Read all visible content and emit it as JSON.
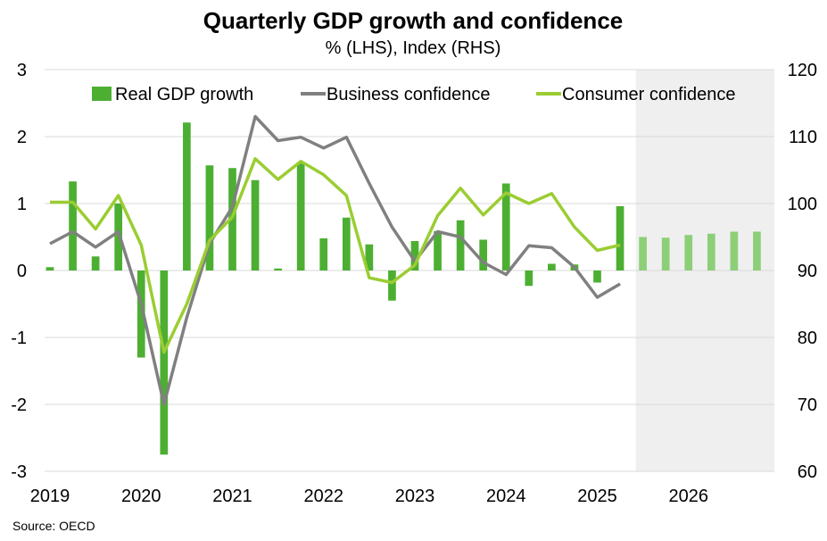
{
  "chart_data": {
    "type": "bar+line",
    "title": "Quarterly GDP growth and confidence",
    "subtitle": "% (LHS), Index (RHS)",
    "source": "Source: OECD",
    "x_labels": [
      "2019",
      "2020",
      "2021",
      "2022",
      "2023",
      "2024",
      "2025",
      "2026"
    ],
    "x_start": 2019,
    "x_end": 2027,
    "forecast_from": 2025.5,
    "y_left": {
      "min": -3,
      "max": 3,
      "ticks": [
        "3",
        "2",
        "1",
        "0",
        "-1",
        "-2",
        "-3"
      ]
    },
    "y_right": {
      "min": 60,
      "max": 120,
      "ticks": [
        "120",
        "110",
        "100",
        "90",
        "80",
        "70",
        "60"
      ]
    },
    "colors": {
      "gdp": "#4caf32",
      "gdp_forecast": "#8ccf78",
      "business": "#808080",
      "consumer": "#9acd32",
      "gridline": "#d9d9d9",
      "forecast_shade": "#efefef"
    },
    "legend": [
      {
        "label": "Real GDP growth",
        "kind": "bar",
        "color": "#4caf32"
      },
      {
        "label": "Business confidence",
        "kind": "line",
        "color": "#808080"
      },
      {
        "label": "Consumer confidence",
        "kind": "line",
        "color": "#9acd32"
      }
    ],
    "series": [
      {
        "name": "Real GDP growth",
        "axis": "left",
        "type": "bar",
        "points": [
          {
            "t": 2019.0,
            "v": 0.05
          },
          {
            "t": 2019.25,
            "v": 1.33
          },
          {
            "t": 2019.5,
            "v": 0.21
          },
          {
            "t": 2019.75,
            "v": 1.0
          },
          {
            "t": 2020.0,
            "v": -1.3
          },
          {
            "t": 2020.25,
            "v": -2.75
          },
          {
            "t": 2020.5,
            "v": 2.21
          },
          {
            "t": 2020.75,
            "v": 1.57
          },
          {
            "t": 2021.0,
            "v": 1.53
          },
          {
            "t": 2021.25,
            "v": 1.35
          },
          {
            "t": 2021.5,
            "v": 0.03
          },
          {
            "t": 2021.75,
            "v": 1.6
          },
          {
            "t": 2022.0,
            "v": 0.48
          },
          {
            "t": 2022.25,
            "v": 0.79
          },
          {
            "t": 2022.5,
            "v": 0.39
          },
          {
            "t": 2022.75,
            "v": -0.45
          },
          {
            "t": 2023.0,
            "v": 0.44
          },
          {
            "t": 2023.25,
            "v": 0.59
          },
          {
            "t": 2023.5,
            "v": 0.75
          },
          {
            "t": 2023.75,
            "v": 0.46
          },
          {
            "t": 2024.0,
            "v": 1.3
          },
          {
            "t": 2024.25,
            "v": -0.23
          },
          {
            "t": 2024.5,
            "v": 0.1
          },
          {
            "t": 2024.75,
            "v": 0.09
          },
          {
            "t": 2025.0,
            "v": -0.18
          },
          {
            "t": 2025.25,
            "v": 0.96
          }
        ]
      },
      {
        "name": "Real GDP growth (forecast)",
        "axis": "left",
        "type": "bar",
        "points": [
          {
            "t": 2025.5,
            "v": 0.5
          },
          {
            "t": 2025.75,
            "v": 0.49
          },
          {
            "t": 2026.0,
            "v": 0.53
          },
          {
            "t": 2026.25,
            "v": 0.55
          },
          {
            "t": 2026.5,
            "v": 0.58
          },
          {
            "t": 2026.75,
            "v": 0.58
          }
        ]
      },
      {
        "name": "Business confidence",
        "axis": "right",
        "type": "line",
        "points": [
          {
            "t": 2019.0,
            "v": 94
          },
          {
            "t": 2019.25,
            "v": 95.8
          },
          {
            "t": 2019.5,
            "v": 93.5
          },
          {
            "t": 2019.75,
            "v": 95.8
          },
          {
            "t": 2020.0,
            "v": 85
          },
          {
            "t": 2020.25,
            "v": 70
          },
          {
            "t": 2020.5,
            "v": 83
          },
          {
            "t": 2020.75,
            "v": 94
          },
          {
            "t": 2021.0,
            "v": 99.5
          },
          {
            "t": 2021.25,
            "v": 113
          },
          {
            "t": 2021.5,
            "v": 109.4
          },
          {
            "t": 2021.75,
            "v": 109.9
          },
          {
            "t": 2022.0,
            "v": 108.3
          },
          {
            "t": 2022.25,
            "v": 109.9
          },
          {
            "t": 2022.5,
            "v": 103
          },
          {
            "t": 2022.75,
            "v": 96.5
          },
          {
            "t": 2023.0,
            "v": 91.4
          },
          {
            "t": 2023.25,
            "v": 95.8
          },
          {
            "t": 2023.5,
            "v": 95
          },
          {
            "t": 2023.75,
            "v": 91.2
          },
          {
            "t": 2024.0,
            "v": 89.4
          },
          {
            "t": 2024.25,
            "v": 93.7
          },
          {
            "t": 2024.5,
            "v": 93.4
          },
          {
            "t": 2024.75,
            "v": 90.5
          },
          {
            "t": 2025.0,
            "v": 86
          },
          {
            "t": 2025.25,
            "v": 88
          }
        ]
      },
      {
        "name": "Consumer confidence",
        "axis": "right",
        "type": "line",
        "points": [
          {
            "t": 2019.0,
            "v": 100.2
          },
          {
            "t": 2019.25,
            "v": 100.2
          },
          {
            "t": 2019.5,
            "v": 96.2
          },
          {
            "t": 2019.75,
            "v": 101.2
          },
          {
            "t": 2020.0,
            "v": 93.8
          },
          {
            "t": 2020.25,
            "v": 77.8
          },
          {
            "t": 2020.5,
            "v": 85
          },
          {
            "t": 2020.75,
            "v": 94.5
          },
          {
            "t": 2021.0,
            "v": 98
          },
          {
            "t": 2021.25,
            "v": 106.7
          },
          {
            "t": 2021.5,
            "v": 103.6
          },
          {
            "t": 2021.75,
            "v": 106.3
          },
          {
            "t": 2022.0,
            "v": 104.3
          },
          {
            "t": 2022.25,
            "v": 101.2
          },
          {
            "t": 2022.5,
            "v": 88.9
          },
          {
            "t": 2022.75,
            "v": 88.2
          },
          {
            "t": 2023.0,
            "v": 90.8
          },
          {
            "t": 2023.25,
            "v": 98.2
          },
          {
            "t": 2023.5,
            "v": 102.3
          },
          {
            "t": 2023.75,
            "v": 98.3
          },
          {
            "t": 2024.0,
            "v": 101.6
          },
          {
            "t": 2024.25,
            "v": 100
          },
          {
            "t": 2024.5,
            "v": 101.5
          },
          {
            "t": 2024.75,
            "v": 96.5
          },
          {
            "t": 2025.0,
            "v": 93
          },
          {
            "t": 2025.25,
            "v": 93.8
          }
        ]
      }
    ]
  }
}
